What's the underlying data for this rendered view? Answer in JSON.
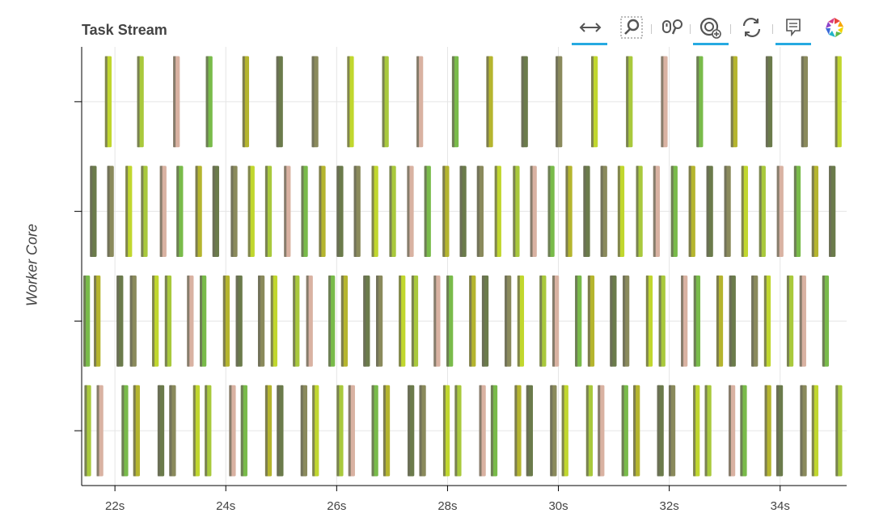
{
  "title": "Task Stream",
  "chart_data": {
    "type": "bar",
    "title": "Task Stream",
    "ylabel": "Worker Core",
    "xlabel": "",
    "xlim": [
      21.4,
      35.2
    ],
    "x_ticks": [
      22,
      24,
      26,
      28,
      30,
      32,
      34
    ],
    "x_tick_labels": [
      "22s",
      "24s",
      "26s",
      "28s",
      "30s",
      "32s",
      "34s"
    ],
    "y_rows": 4,
    "grid": true,
    "tasks": [
      {
        "row": 0,
        "starts": [
          21.82,
          22.4,
          23.05,
          23.64,
          24.3,
          24.91,
          25.55,
          26.19,
          26.82,
          27.44,
          28.08,
          28.7,
          29.33,
          29.95,
          30.59,
          31.22,
          31.85,
          32.49,
          33.11,
          33.74,
          34.38,
          34.99
        ]
      },
      {
        "row": 1,
        "starts": [
          21.55,
          21.86,
          22.19,
          22.47,
          22.81,
          23.11,
          23.45,
          23.76,
          24.09,
          24.4,
          24.71,
          25.05,
          25.36,
          25.68,
          26.0,
          26.31,
          26.63,
          26.95,
          27.27,
          27.58,
          27.91,
          28.22,
          28.53,
          28.85,
          29.18,
          29.49,
          29.81,
          30.13,
          30.45,
          30.76,
          31.07,
          31.4,
          31.71,
          32.03,
          32.35,
          32.67,
          32.99,
          33.3,
          33.62,
          33.94,
          34.25,
          34.57,
          34.88
        ]
      },
      {
        "row": 2,
        "starts": [
          21.43,
          21.62,
          22.03,
          22.27,
          22.67,
          22.9,
          23.3,
          23.53,
          23.95,
          24.18,
          24.58,
          24.81,
          25.21,
          25.45,
          25.85,
          26.08,
          26.48,
          26.71,
          27.12,
          27.35,
          27.75,
          27.98,
          28.39,
          28.62,
          29.03,
          29.26,
          29.66,
          29.89,
          30.3,
          30.53,
          30.93,
          31.16,
          31.58,
          31.81,
          32.21,
          32.44,
          32.85,
          33.08,
          33.48,
          33.71,
          34.12,
          34.35,
          34.76
        ]
      },
      {
        "row": 3,
        "starts": [
          21.45,
          21.67,
          22.12,
          22.33,
          22.77,
          22.98,
          23.41,
          23.62,
          24.06,
          24.27,
          24.71,
          24.92,
          25.35,
          25.56,
          26.0,
          26.21,
          26.63,
          26.84,
          27.28,
          27.49,
          27.92,
          28.13,
          28.57,
          28.78,
          29.21,
          29.42,
          29.85,
          30.06,
          30.5,
          30.71,
          31.14,
          31.35,
          31.78,
          31.99,
          32.43,
          32.64,
          33.07,
          33.28,
          33.72,
          33.93,
          34.36,
          34.57,
          35.0
        ]
      }
    ],
    "task_duration": 0.12,
    "task_colors": [
      "#c1d72e",
      "#6b7b4b",
      "#79bb4a",
      "#a9c93c",
      "#8a8a5c",
      "#b5b52e",
      "#d9b2a2"
    ]
  },
  "toolbar": {
    "tools": [
      "xpan-icon",
      "box-zoom-icon",
      "wheel-zoom-icon",
      "zoom-in-icon",
      "reset-icon",
      "hover-icon",
      "bokeh-logo-icon"
    ]
  }
}
